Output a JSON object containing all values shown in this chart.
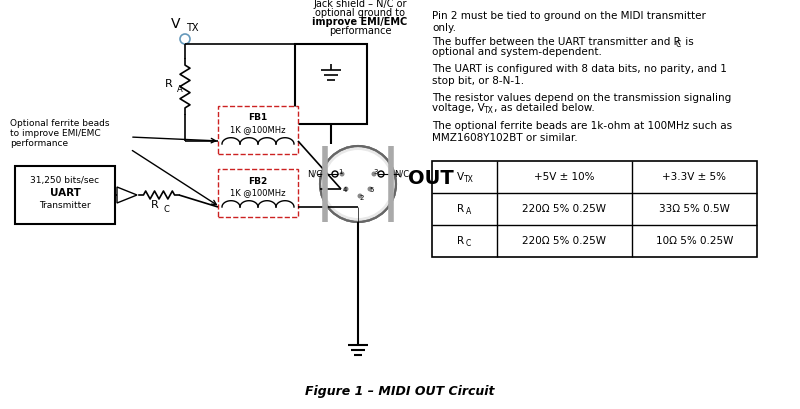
{
  "figure_caption": "Figure 1 – MIDI OUT Circuit",
  "background_color": "#ffffff",
  "figsize": [
    8.0,
    4.09
  ],
  "dpi": 100,
  "note1": "Pin 2 must be tied to ground on the MIDI transmitter\nonly.",
  "note2": "The buffer between the UART transmitter and R",
  "note2b": " is\noptional and system-dependent.",
  "note3": "The UART is configured with 8 data bits, no parity, and 1\nstop bit, or 8-N-1.",
  "note4": "The resistor values depend on the transmission signaling\nvoltage, V",
  "note4b": ", as detailed below.",
  "note5": "The optional ferrite beads are 1k-ohm at 100MHz such as\nMMZ1608Y102BT or similar.",
  "jack_line1": "Jack shield – N/C or",
  "jack_line2": "optional ground to",
  "jack_line3": "improve EMI/EMC",
  "jack_line4": "performance",
  "fb1_label": "FB1",
  "fb1_freq": "1K @100MHz",
  "fb2_label": "FB2",
  "fb2_freq": "1K @100MHz",
  "out_label": "OUT",
  "nc_label": "N/C",
  "vtx_label": "V",
  "vtx_sub": "TX",
  "ra_label": "R",
  "ra_sub": "A",
  "rc_label": "R",
  "rc_sub": "C",
  "uart_line1": "31,250 bits/sec",
  "uart_line2": "UART",
  "uart_line3": "Transmitter",
  "opt_line1": "Optional ferrite beads",
  "opt_line2": "to improve EMI/EMC",
  "opt_line3": "performance",
  "table_col1_header": "V",
  "table_col1_sub": "TX",
  "table_col2_header": "+5V ± 10%",
  "table_col3_header": "+3.3V ± 5%",
  "table_r1_c1": "R",
  "table_r1_c1_sub": "A",
  "table_r1_c2": "220Ω 5% 0.25W",
  "table_r1_c3": "33Ω 5% 0.5W",
  "table_r2_c1": "R",
  "table_r2_c1_sub": "C",
  "table_r2_c2": "220Ω 5% 0.25W",
  "table_r2_c3": "10Ω 5% 0.25W"
}
